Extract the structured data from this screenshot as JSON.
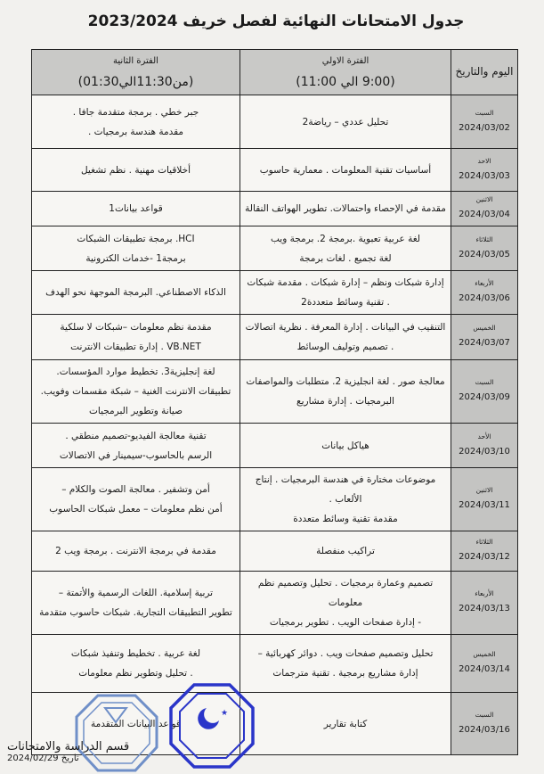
{
  "title": "جدول الامتحانات النهائية لفصل خريف 2023/2024",
  "header": {
    "day_col": "اليوم والتاريخ",
    "period1_label": "الفترة الاولي",
    "period1_time": "(9:00 الي 11:00)",
    "period2_label": "الفترة الثانية",
    "period2_time": "(من11:30الي01:30)"
  },
  "rows": [
    {
      "day": "السبت",
      "date": "2024/03/02",
      "p1": [
        "تحليل عددي – رياضة2"
      ],
      "p2": [
        "جبر خطي . برمجة متقدمة جافا .",
        "مقدمة هندسة برمجيات ."
      ]
    },
    {
      "day": "الاحد",
      "date": "2024/03/03",
      "p1": [
        "أساسيات تقنية المعلومات . معمارية حاسوب"
      ],
      "p2": [
        "أخلاقيات مهنية . نظم تشغيل"
      ]
    },
    {
      "day": "الاثنين",
      "date": "2024/03/04",
      "p1": [
        "مقدمة في الإحصاء واحتمالات. تطوير الهواتف النقالة"
      ],
      "p2": [
        "قواعد بيانات1"
      ]
    },
    {
      "day": "الثلاثاء",
      "date": "2024/03/05",
      "p1": [
        "لغة عربية تعبوية .برمجة 2. برمجة ويب",
        "لغة تجميع . لغات برمجة"
      ],
      "p2": [
        "HCI. برمجة تطبيقات الشبكات",
        "برمجة1 -خدمات الكترونية"
      ]
    },
    {
      "day": "الأربعاء",
      "date": "2024/03/06",
      "p1": [
        "إدارة شبكات ونظم – إدارة شبكات . مقدمة شبكات",
        ". تقنية وسائط متعددة2"
      ],
      "p2": [
        "الذكاء الاصطناعي. البرمجة الموجهة نحو الهدف"
      ]
    },
    {
      "day": "الخميس",
      "date": "2024/03/07",
      "p1": [
        "التنقيب في البيانات . إدارة المعرفة . نظرية اتصالات",
        ". تصميم وتوليف الوسائط"
      ],
      "p2": [
        "مقدمة نظم معلومات –شبكات لا سلكية",
        "VB.NET . إدارة تطبيقات الانترنت"
      ]
    },
    {
      "day": "السبت",
      "date": "2024/03/09",
      "p1": [
        "معالجة صور . لغة انجليزية 2. متطلبات والمواصفات",
        "البرمجيات . إدارة مشاريع"
      ],
      "p2": [
        "لغة إنجليزية3. تخطيط موارد المؤسسات.",
        "تطبيقات الانترنت الغنية – شبكة مقسمات وفويب.",
        "صيانة وتطوير البرمجيات"
      ]
    },
    {
      "day": "الأحد",
      "date": "2024/03/10",
      "p1": [
        "هياكل بيانات"
      ],
      "p2": [
        "تقنية معالجة الفيديو-تصميم منطقي .",
        "الرسم بالحاسوب-سيمينار في الاتصالات"
      ]
    },
    {
      "day": "الاثنين",
      "date": "2024/03/11",
      "p1": [
        "موضوعات مختارة في هندسة البرمجيات . إنتاج الألعاب .",
        "مقدمة تقنية وسائط متعددة"
      ],
      "p2": [
        "أمن وتشفير . معالجة الصوت والكلام –",
        "أمن نظم معلومات – معمل شبكات الحاسوب"
      ]
    },
    {
      "day": "الثلاثاء",
      "date": "2024/03/12",
      "p1": [
        "تراكيب منفصلة"
      ],
      "p2": [
        "مقدمة في برمجة الانترنت . برمجة ويب 2"
      ]
    },
    {
      "day": "الأربعاء",
      "date": "2024/03/13",
      "p1": [
        "تصميم وعمارة برمجيات . تحليل وتصميم نظم معلومات",
        "- إدارة صفحات الويب . تطوير برمجيات"
      ],
      "p2": [
        "تربية إسلامية. اللغات الرسمية والأتمتة –",
        "تطوير التطبيقات التجارية. شبكات حاسوب متقدمة"
      ]
    },
    {
      "day": "الخميس",
      "date": "2024/03/14",
      "p1": [
        "تحليل وتصميم صفحات ويب . دوائر كهربائية –",
        "إدارة مشاريع برمجية . تقنية مترجمات"
      ],
      "p2": [
        "لغة عربية . تخطيط وتنفيذ شبكات",
        ". تحليل وتطوير نظم معلومات"
      ]
    },
    {
      "day": "السبت",
      "date": "2024/03/16",
      "p1": [
        "كتابة تقارير"
      ],
      "p2": [
        "قواعد البيانات المتقدمة"
      ]
    }
  ],
  "footer": {
    "department": "قسم الدراسة والامتحانات",
    "date": "تاريخ 2024/02/29"
  },
  "stamps": {
    "left_text": "جامعة مصراتة مكتب الدراسة والامتحانات كلية تقنية المعلومات",
    "right_text": "جامعة مصراتة لجنة الامتحانات والمراقبة كلية تقنية المعلومات",
    "left_color": "#6f8fc8",
    "right_color": "#2a35c9"
  }
}
